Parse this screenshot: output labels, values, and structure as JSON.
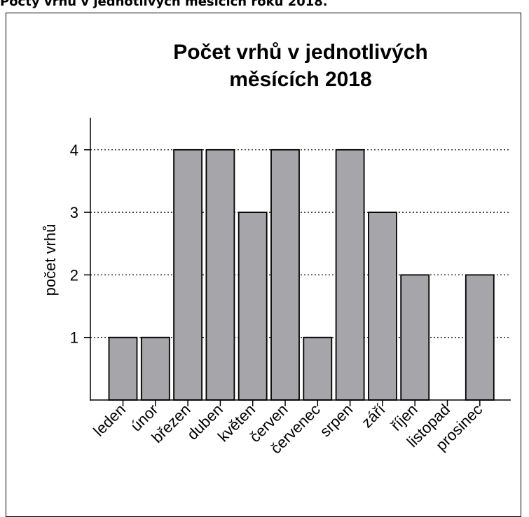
{
  "caption": "Počty vrhů v jednotlivých měsících roku 2018.",
  "chart_data": {
    "type": "bar",
    "title_lines": [
      "Počet vrhů v jednotlivých",
      "měsících 2018"
    ],
    "xlabel": "",
    "ylabel": "počet vrhů",
    "categories": [
      "leden",
      "únor",
      "březen",
      "duben",
      "květen",
      "červen",
      "červenec",
      "srpen",
      "září",
      "říjen",
      "listopad",
      "prosinec"
    ],
    "values": [
      1,
      1,
      4,
      4,
      3,
      4,
      1,
      4,
      3,
      2,
      0,
      2
    ],
    "yticks": [
      1,
      2,
      3,
      4
    ],
    "ylim": [
      0,
      4.5
    ],
    "grid": "horizontal-dotted",
    "bar_color": "#a6a5aa",
    "bar_stroke": "#000000"
  }
}
